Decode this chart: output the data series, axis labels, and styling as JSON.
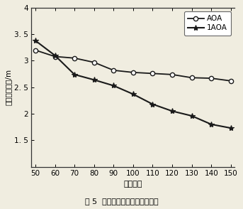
{
  "x": [
    50,
    60,
    70,
    80,
    90,
    100,
    110,
    120,
    130,
    140,
    150
  ],
  "aoa_y": [
    3.2,
    3.08,
    3.05,
    2.97,
    2.82,
    2.78,
    2.76,
    2.74,
    2.68,
    2.67,
    2.62
  ],
  "iaoa_y": [
    3.38,
    3.1,
    2.74,
    2.64,
    2.53,
    2.37,
    2.18,
    2.05,
    1.96,
    1.8,
    1.73
  ],
  "xlabel": "节点数目",
  "ylabel": "平均定位误差/m",
  "xlim": [
    48,
    152
  ],
  "ylim": [
    1.0,
    4.0
  ],
  "yticks": [
    1.5,
    2.0,
    2.5,
    3.0,
    3.5,
    4.0
  ],
  "ytick_labels": [
    "1. 5",
    "2",
    "2. 5",
    "3",
    "3. 5",
    "4"
  ],
  "xticks": [
    50,
    60,
    70,
    80,
    90,
    100,
    110,
    120,
    130,
    140,
    150
  ],
  "aoa_label": "AOA",
  "iaoa_label": "1AOA",
  "caption": "图 5  节点数目对定位精度的影响",
  "bg_color": "#f0ede0",
  "plot_bg": "#f0ede0",
  "line_color": "#1a1a1a"
}
